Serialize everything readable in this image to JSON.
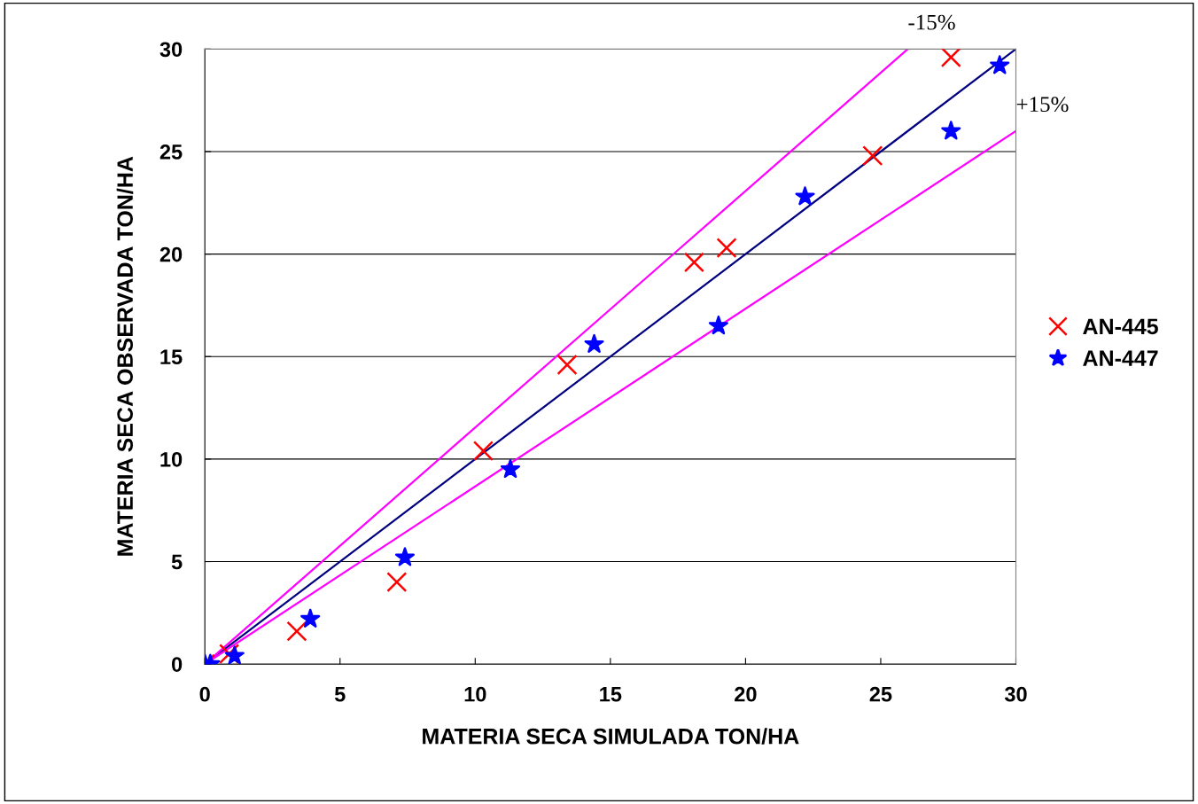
{
  "chart_data": {
    "type": "scatter",
    "xlabel": "MATERIA SECA SIMULADA TON/HA",
    "ylabel": "MATERIA SECA OBSERVADA TON/HA",
    "xlim": [
      0,
      30
    ],
    "ylim": [
      0,
      30
    ],
    "xticks": [
      0,
      5,
      10,
      15,
      20,
      25,
      30
    ],
    "yticks": [
      0,
      5,
      10,
      15,
      20,
      25,
      30
    ],
    "grid": "y",
    "legend": "right",
    "series": [
      {
        "type": "line",
        "color": "#000080",
        "x": [
          0,
          30
        ],
        "values": [
          0,
          30
        ]
      },
      {
        "type": "line",
        "color": "#ff00ff",
        "x": [
          0,
          26
        ],
        "values": [
          0,
          30
        ]
      },
      {
        "type": "line",
        "color": "#ff00ff",
        "x": [
          0,
          30
        ],
        "values": [
          0,
          26
        ]
      },
      {
        "name": "AN-445",
        "color": "#ff0000",
        "marker": "cross",
        "x": [
          0,
          0.9,
          3.4,
          7.1,
          10.3,
          13.4,
          18.1,
          19.3,
          24.7,
          27.6
        ],
        "values": [
          0,
          0.5,
          1.6,
          4.0,
          10.4,
          14.6,
          19.6,
          20.3,
          24.8,
          29.6
        ]
      },
      {
        "name": "AN-447",
        "color": "#0000ff",
        "marker": "star",
        "x": [
          0,
          0.2,
          1.1,
          3.9,
          7.4,
          11.3,
          14.4,
          19.0,
          22.2,
          27.6,
          29.4
        ],
        "values": [
          0,
          0,
          0.4,
          2.2,
          5.2,
          9.5,
          15.6,
          16.5,
          22.8,
          26.0,
          29.2
        ]
      }
    ],
    "annotations": [
      {
        "text": "-15%",
        "x": 26,
        "y": 30
      },
      {
        "text": "+15%",
        "x": 30,
        "y": 26
      }
    ]
  }
}
